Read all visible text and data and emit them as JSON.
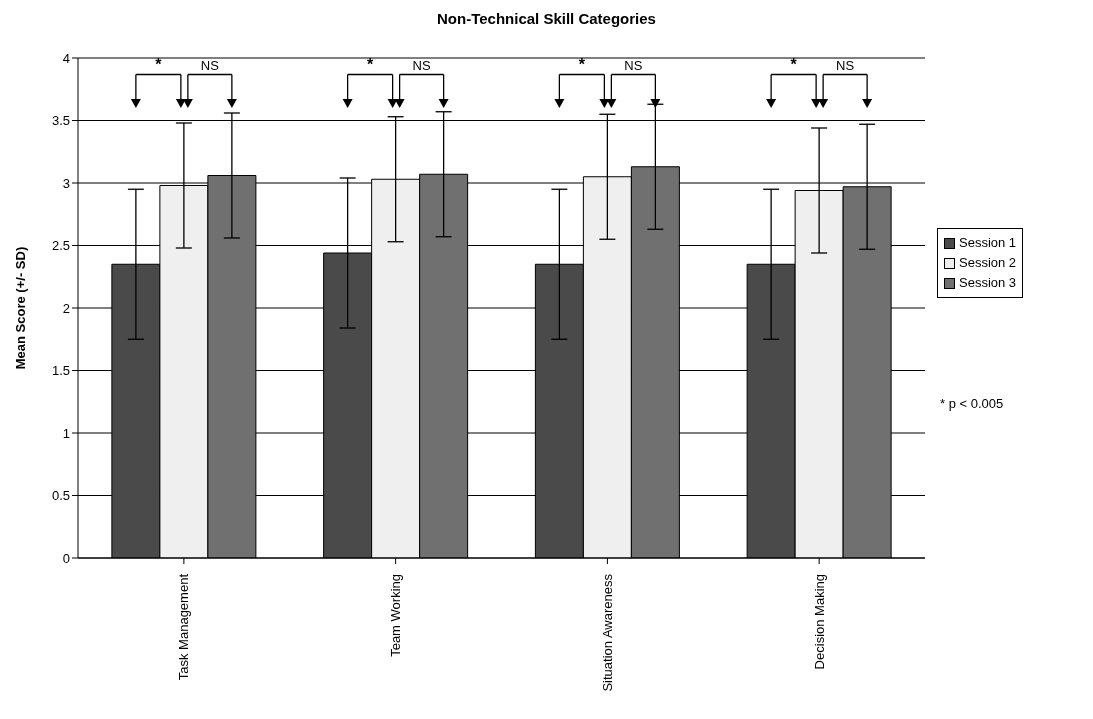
{
  "chart_data": {
    "type": "bar",
    "title": "Non-Technical Skill Categories",
    "ylabel": "Mean Score (+/- SD)",
    "categories": [
      "Task Management",
      "Team Working",
      "Situation Awareness",
      "Decision Making"
    ],
    "series": [
      {
        "name": "Session 1",
        "color": "#4a4a4a",
        "values": [
          2.35,
          2.44,
          2.35,
          2.35
        ],
        "errors": [
          0.6,
          0.6,
          0.6,
          0.6
        ]
      },
      {
        "name": "Session 2",
        "color": "#efefef",
        "values": [
          2.98,
          3.03,
          3.05,
          2.94
        ],
        "errors": [
          0.5,
          0.5,
          0.5,
          0.5
        ]
      },
      {
        "name": "Session 3",
        "color": "#707070",
        "values": [
          3.06,
          3.07,
          3.13,
          2.97
        ],
        "errors": [
          0.5,
          0.5,
          0.5,
          0.5
        ]
      }
    ],
    "ylim": [
      0,
      4
    ],
    "yticks": [
      0,
      0.5,
      1,
      1.5,
      2,
      2.5,
      3,
      3.5,
      4
    ],
    "grid": "y",
    "legend": "right",
    "annotations": [
      "*",
      "NS",
      "*",
      "NS",
      "*",
      "NS",
      "*",
      "NS",
      "* p < 0.005"
    ]
  }
}
